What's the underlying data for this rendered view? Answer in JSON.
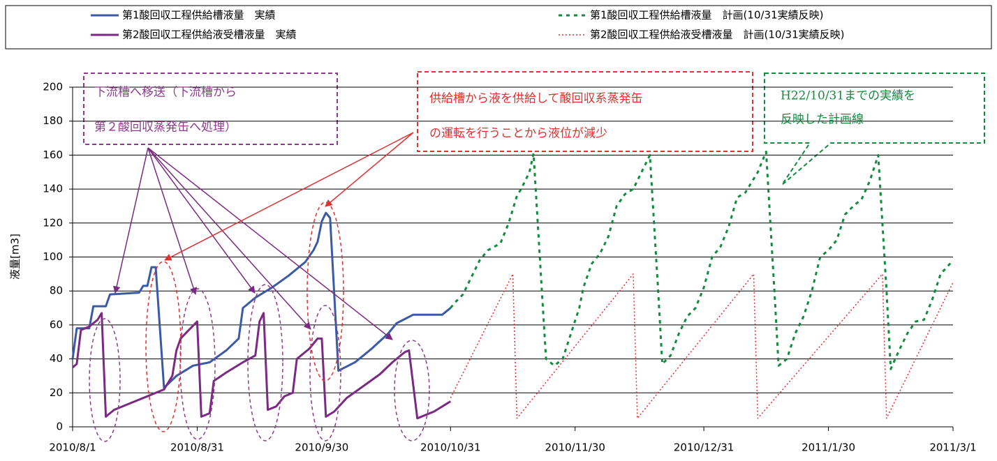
{
  "chart_data": {
    "type": "line",
    "ylabel": "液量[m3]",
    "xlim": [
      "2010/8/1",
      "2011/3/1"
    ],
    "xticks": [
      "2010/8/1",
      "2010/8/31",
      "2010/9/30",
      "2010/10/31",
      "2010/11/30",
      "2010/12/31",
      "2011/1/30",
      "2011/3/1"
    ],
    "ylim": [
      0,
      200
    ],
    "yticks": [
      0,
      20,
      40,
      60,
      80,
      100,
      120,
      140,
      160,
      180,
      200
    ],
    "grid": true,
    "legend": "top",
    "series": [
      {
        "name": "第1酸回収工程供給槽液量　実績",
        "color": "#3a5aa8",
        "style": "solid",
        "x": [
          "2010/8/1",
          "2010/8/2",
          "2010/8/5",
          "2010/8/6",
          "2010/8/9",
          "2010/8/10",
          "2010/8/17",
          "2010/8/18",
          "2010/8/19",
          "2010/8/20",
          "2010/8/21",
          "2010/8/23",
          "2010/8/26",
          "2010/8/30",
          "2010/9/3",
          "2010/9/7",
          "2010/9/10",
          "2010/9/11",
          "2010/9/14",
          "2010/9/18",
          "2010/9/22",
          "2010/9/26",
          "2010/9/28",
          "2010/9/29",
          "2010/9/30",
          "2010/10/1",
          "2010/10/2",
          "2010/10/4",
          "2010/10/8",
          "2010/10/12",
          "2010/10/16",
          "2010/10/18",
          "2010/10/22",
          "2010/10/29",
          "2010/10/31"
        ],
        "values": [
          40,
          58,
          58,
          71,
          71,
          78,
          79,
          83,
          83,
          94,
          94,
          23,
          30,
          36,
          38,
          45,
          52,
          70,
          76,
          82,
          89,
          97,
          104,
          109,
          121,
          126,
          123,
          33,
          38,
          46,
          55,
          61,
          66,
          66,
          70
        ]
      },
      {
        "name": "第2酸回収工程供給液受槽液量　実績",
        "color": "#7a2a82",
        "style": "solid",
        "x": [
          "2010/8/1",
          "2010/8/2",
          "2010/8/3",
          "2010/8/5",
          "2010/8/7",
          "2010/8/8",
          "2010/8/9",
          "2010/8/11",
          "2010/8/15",
          "2010/8/19",
          "2010/8/23",
          "2010/8/25",
          "2010/8/26",
          "2010/8/27",
          "2010/8/29",
          "2010/8/31",
          "2010/9/1",
          "2010/9/3",
          "2010/9/4",
          "2010/9/7",
          "2010/9/11",
          "2010/9/14",
          "2010/9/15",
          "2010/9/16",
          "2010/9/17",
          "2010/9/19",
          "2010/9/21",
          "2010/9/23",
          "2010/9/24",
          "2010/9/27",
          "2010/9/29",
          "2010/9/30",
          "2010/10/1",
          "2010/10/3",
          "2010/10/6",
          "2010/10/10",
          "2010/10/14",
          "2010/10/17",
          "2010/10/20",
          "2010/10/21",
          "2010/10/23",
          "2010/10/27",
          "2010/10/31"
        ],
        "values": [
          35,
          37,
          57,
          59,
          63,
          67,
          6,
          10,
          14,
          18,
          22,
          30,
          45,
          52,
          57,
          62,
          6,
          8,
          27,
          32,
          38,
          42,
          62,
          67,
          10,
          12,
          18,
          20,
          40,
          46,
          52,
          52,
          6,
          9,
          17,
          24,
          31,
          38,
          44,
          45,
          5,
          9,
          15
        ]
      },
      {
        "name": "第1酸回収工程供給槽液量　計画(10/31実績反映)",
        "color": "#138a3e",
        "style": "dashed",
        "x": [
          "2010/10/31",
          "2010/11/1",
          "2010/11/3",
          "2010/11/5",
          "2010/11/7",
          "2010/11/9",
          "2010/11/12",
          "2010/11/14",
          "2010/11/16",
          "2010/11/17",
          "2010/11/19",
          "2010/11/20",
          "2010/11/22",
          "2010/11/23",
          "2010/11/25",
          "2010/11/27",
          "2010/11/29",
          "2010/12/1",
          "2010/12/2",
          "2010/12/4",
          "2010/12/6",
          "2010/12/8",
          "2010/12/10",
          "2010/12/12",
          "2010/12/14",
          "2010/12/16",
          "2010/12/18",
          "2010/12/20",
          "2010/12/21",
          "2010/12/23",
          "2010/12/25",
          "2010/12/27",
          "2010/12/29",
          "2010/12/31",
          "2011/1/2",
          "2011/1/4",
          "2011/1/6",
          "2011/1/8",
          "2011/1/10",
          "2011/1/13",
          "2011/1/15",
          "2011/1/17",
          "2011/1/18",
          "2011/1/20",
          "2011/1/22",
          "2011/1/24",
          "2011/1/26",
          "2011/1/28",
          "2011/1/30",
          "2011/2/1",
          "2011/2/3",
          "2011/2/5",
          "2011/2/7",
          "2011/2/9",
          "2011/2/11",
          "2011/2/13",
          "2011/2/14",
          "2011/2/16",
          "2011/2/18",
          "2011/2/20",
          "2011/2/22",
          "2011/2/24",
          "2011/2/26",
          "2011/3/1"
        ],
        "values": [
          70,
          73,
          78,
          88,
          98,
          104,
          108,
          120,
          136,
          140,
          150,
          161,
          80,
          40,
          36,
          40,
          55,
          70,
          82,
          96,
          102,
          112,
          130,
          137,
          140,
          150,
          160,
          80,
          37,
          42,
          55,
          65,
          70,
          82,
          100,
          106,
          118,
          135,
          138,
          150,
          162,
          80,
          36,
          40,
          55,
          65,
          80,
          100,
          104,
          110,
          125,
          130,
          134,
          145,
          160,
          80,
          34,
          45,
          55,
          62,
          63,
          75,
          90,
          98
        ]
      },
      {
        "name": "第2酸回収工程供給液受槽液量　計画(10/31実績反映)",
        "color": "#e03030",
        "style": "dotted",
        "x": [
          "2010/10/31",
          "2010/11/15",
          "2010/11/16",
          "2010/12/14",
          "2010/12/15",
          "2011/1/12",
          "2011/1/13",
          "2011/2/12",
          "2011/2/13",
          "2011/3/1"
        ],
        "values": [
          17,
          90,
          5,
          90,
          5,
          90,
          5,
          90,
          5,
          85
        ]
      }
    ]
  },
  "annotations": [
    {
      "lines": [
        "下流槽へ移送（下流槽から",
        "第２酸回収蒸発缶へ処理）"
      ]
    },
    {
      "lines": [
        "供給槽から液を供給して酸回収系蒸発缶",
        "の運転を行うことから液位が減少"
      ]
    },
    {
      "lines": [
        "H22/10/31までの実績を",
        "反映した計画線"
      ]
    }
  ]
}
